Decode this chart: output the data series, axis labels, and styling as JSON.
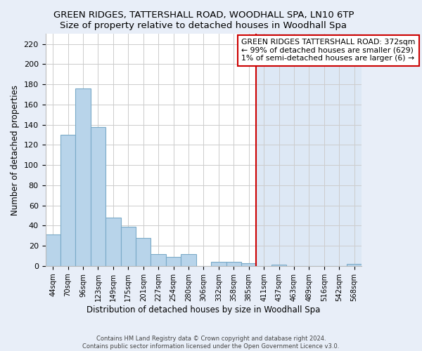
{
  "title": "GREEN RIDGES, TATTERSHALL ROAD, WOODHALL SPA, LN10 6TP",
  "subtitle": "Size of property relative to detached houses in Woodhall Spa",
  "xlabel": "Distribution of detached houses by size in Woodhall Spa",
  "ylabel": "Number of detached properties",
  "bar_labels": [
    "44sqm",
    "70sqm",
    "96sqm",
    "123sqm",
    "149sqm",
    "175sqm",
    "201sqm",
    "227sqm",
    "254sqm",
    "280sqm",
    "306sqm",
    "332sqm",
    "358sqm",
    "385sqm",
    "411sqm",
    "437sqm",
    "463sqm",
    "489sqm",
    "516sqm",
    "542sqm",
    "568sqm"
  ],
  "bar_values": [
    31,
    130,
    176,
    138,
    48,
    39,
    28,
    12,
    9,
    12,
    0,
    4,
    4,
    3,
    0,
    1,
    0,
    0,
    0,
    0,
    2
  ],
  "bar_color": "#b8d4ea",
  "bar_edge_color": "#7aaac8",
  "vline_x_index": 13,
  "vline_color": "#cc0000",
  "ylim": [
    0,
    230
  ],
  "yticks": [
    0,
    20,
    40,
    60,
    80,
    100,
    120,
    140,
    160,
    180,
    200,
    220
  ],
  "legend_title": "GREEN RIDGES TATTERSHALL ROAD: 372sqm",
  "legend_line1": "← 99% of detached houses are smaller (629)",
  "legend_line2": "1% of semi-detached houses are larger (6) →",
  "footer_line1": "Contains HM Land Registry data © Crown copyright and database right 2024.",
  "footer_line2": "Contains public sector information licensed under the Open Government Licence v3.0.",
  "bg_color_left": "#ffffff",
  "bg_color_right": "#dde8f5",
  "grid_color": "#cccccc",
  "fig_bg_color": "#e8eef8"
}
